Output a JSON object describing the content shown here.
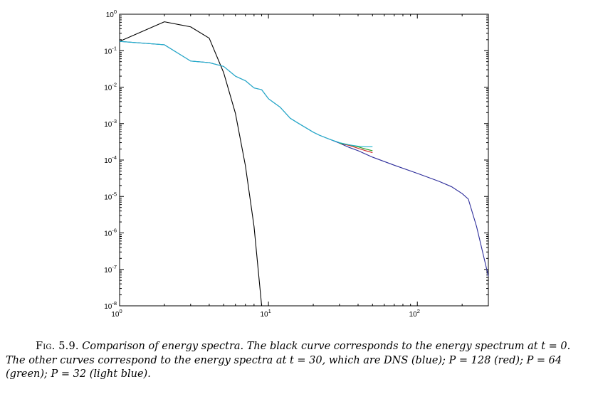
{
  "chart_data": {
    "type": "line",
    "title": "",
    "xlabel": "",
    "ylabel": "",
    "xscale": "log",
    "yscale": "log",
    "xlim": [
      1,
      300
    ],
    "ylim": [
      1e-08,
      1
    ],
    "grid": false,
    "x_ticks": [
      {
        "value": 1,
        "base": "10",
        "exp": "0"
      },
      {
        "value": 10,
        "base": "10",
        "exp": "1"
      },
      {
        "value": 100,
        "base": "10",
        "exp": "2"
      }
    ],
    "y_ticks": [
      {
        "value": 1,
        "base": "10",
        "exp": "0"
      },
      {
        "value": 0.1,
        "base": "10",
        "exp": "-1"
      },
      {
        "value": 0.01,
        "base": "10",
        "exp": "-2"
      },
      {
        "value": 0.001,
        "base": "10",
        "exp": "-3"
      },
      {
        "value": 0.0001,
        "base": "10",
        "exp": "-4"
      },
      {
        "value": 1e-05,
        "base": "10",
        "exp": "-5"
      },
      {
        "value": 1e-06,
        "base": "10",
        "exp": "-6"
      },
      {
        "value": 1e-07,
        "base": "10",
        "exp": "-7"
      },
      {
        "value": 1e-08,
        "base": "10",
        "exp": "-8"
      }
    ],
    "series": [
      {
        "color": "#000000",
        "x": [
          1,
          2,
          3,
          4,
          5,
          6,
          7,
          8,
          9
        ],
        "y": [
          0.18,
          0.62,
          0.45,
          0.22,
          0.025,
          0.0019,
          7e-05,
          1.5e-06,
          1e-08
        ]
      },
      {
        "color": "#2c2c9a",
        "x": [
          1,
          2,
          3,
          4,
          5,
          6,
          7,
          8,
          9,
          10,
          12,
          14,
          16,
          18,
          20,
          22,
          25,
          30,
          35,
          40,
          50,
          70,
          100,
          140,
          170,
          200,
          220,
          250,
          300
        ],
        "y": [
          0.18,
          0.145,
          0.052,
          0.047,
          0.037,
          0.02,
          0.015,
          0.0095,
          0.0085,
          0.0048,
          0.0028,
          0.0014,
          0.001,
          0.00075,
          0.00058,
          0.00048,
          0.00039,
          0.00029,
          0.00022,
          0.00018,
          0.00012,
          7.2e-05,
          4.3e-05,
          2.6e-05,
          1.85e-05,
          1.2e-05,
          8.5e-06,
          1.5e-06,
          6.5e-08
        ]
      },
      {
        "color": "#cc2222",
        "x": [
          30,
          35,
          40,
          45,
          50
        ],
        "y": [
          0.00029,
          0.00025,
          0.00021,
          0.00018,
          0.00016
        ]
      },
      {
        "color": "#22a020",
        "x": [
          30,
          35,
          40,
          45,
          50
        ],
        "y": [
          0.00029,
          0.00026,
          0.00023,
          0.0002,
          0.00018
        ]
      },
      {
        "color": "#20b4cc",
        "x": [
          1,
          2,
          3,
          4,
          5,
          6,
          7,
          8,
          9,
          10,
          12,
          14,
          16,
          18,
          20,
          22,
          25,
          30,
          35,
          40,
          45,
          50
        ],
        "y": [
          0.18,
          0.145,
          0.052,
          0.047,
          0.037,
          0.02,
          0.015,
          0.0095,
          0.0085,
          0.0048,
          0.0028,
          0.0014,
          0.001,
          0.00075,
          0.00058,
          0.00048,
          0.00039,
          0.0003,
          0.00026,
          0.00024,
          0.00023,
          0.00023
        ]
      }
    ]
  },
  "caption": {
    "label": "Fig. 5.9.",
    "text": "Comparison of energy spectra. The black curve corresponds to the energy spectrum at t = 0. The other curves correspond to the energy spectra at t = 30, which are DNS (blue); P = 128 (red); P = 64 (green); P = 32 (light blue)."
  }
}
